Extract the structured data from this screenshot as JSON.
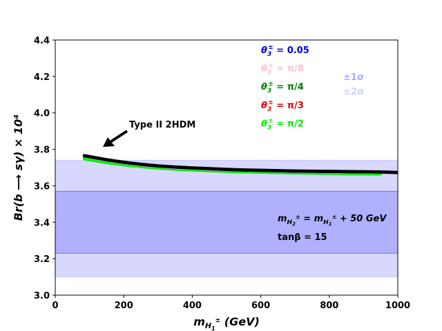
{
  "chart_data": {
    "type": "scatter",
    "xlim": [
      0,
      1000
    ],
    "ylim": [
      3.0,
      4.4
    ],
    "xticks": [
      0,
      200,
      400,
      600,
      800,
      1000
    ],
    "yticks": [
      3.0,
      3.2,
      3.4,
      3.6,
      3.8,
      4.0,
      4.2,
      4.4
    ],
    "xlabel": {
      "main": "m",
      "sub": "H",
      "subsub": "1",
      "sup": "±",
      "unit": " (GeV)"
    },
    "ylabel": "Br(b ⟶ sγ) × 10⁴",
    "grid": false,
    "bands": [
      {
        "name": "±1σ",
        "y0": 3.23,
        "y1": 3.57,
        "color": "#b0b0ff",
        "edge": "#7070ee"
      },
      {
        "name": "±2σ",
        "y0": 3.1,
        "y1": 3.74,
        "color": "#d8d8ff",
        "edge": "#c8c8ff"
      }
    ],
    "series": [
      {
        "name": "θ3± = 0.05",
        "sym": "θ",
        "sub": "3",
        "sup": "±",
        "value": " = 0.05",
        "color": "#0000e6",
        "x": [
          85,
          100,
          150,
          200,
          250,
          300,
          350,
          400,
          450,
          500,
          550,
          600,
          650,
          700,
          750,
          800,
          850,
          900,
          950,
          1000
        ],
        "y": [
          3.765,
          3.76,
          3.742,
          3.728,
          3.717,
          3.708,
          3.702,
          3.697,
          3.693,
          3.689,
          3.686,
          3.684,
          3.682,
          3.68,
          3.679,
          3.678,
          3.677,
          3.676,
          3.675,
          3.672
        ]
      },
      {
        "name": "θ3± = π/8",
        "sym": "θ",
        "sub": "3",
        "sup": "±",
        "value": " = π/8",
        "color": "#ffc0cb",
        "x": [
          85,
          100,
          150,
          200,
          250,
          300,
          350,
          400,
          450,
          500,
          550,
          600,
          650,
          700,
          750,
          800,
          850,
          900,
          950,
          1000
        ],
        "y": [
          3.763,
          3.758,
          3.74,
          3.726,
          3.715,
          3.706,
          3.7,
          3.695,
          3.691,
          3.688,
          3.685,
          3.683,
          3.681,
          3.679,
          3.678,
          3.677,
          3.676,
          3.675,
          3.674,
          3.671
        ]
      },
      {
        "name": "θ3± = π/4",
        "sym": "θ",
        "sub": "3",
        "sup": "±",
        "value": " = π/4",
        "color": "#007f00",
        "x": [
          85,
          100,
          150,
          200,
          250,
          300,
          350,
          400,
          450,
          500,
          550,
          600,
          650,
          700,
          750,
          800,
          850,
          900,
          950
        ],
        "y": [
          3.755,
          3.75,
          3.734,
          3.721,
          3.711,
          3.703,
          3.697,
          3.692,
          3.688,
          3.685,
          3.682,
          3.68,
          3.678,
          3.676,
          3.675,
          3.674,
          3.673,
          3.672,
          3.671
        ]
      },
      {
        "name": "θ3± = π/3",
        "sym": "θ",
        "sub": "3",
        "sup": "±",
        "value": " = π/3",
        "color": "#e60000",
        "x": [
          85,
          100,
          150,
          200,
          250,
          300,
          350,
          400,
          450,
          500,
          550,
          600,
          650,
          700,
          750,
          800,
          850,
          900,
          950
        ],
        "y": [
          3.752,
          3.747,
          3.731,
          3.719,
          3.709,
          3.701,
          3.695,
          3.69,
          3.686,
          3.683,
          3.68,
          3.678,
          3.676,
          3.674,
          3.673,
          3.672,
          3.671,
          3.67,
          3.669
        ]
      },
      {
        "name": "θ3± = π/2",
        "sym": "θ",
        "sub": "3",
        "sup": "±",
        "value": " = π/2",
        "color": "#00ee00",
        "x": [
          85,
          100,
          150,
          200,
          250,
          300,
          350,
          400,
          450,
          500,
          550,
          600,
          650,
          700,
          750,
          800,
          850,
          900,
          950
        ],
        "y": [
          3.748,
          3.743,
          3.727,
          3.715,
          3.705,
          3.697,
          3.691,
          3.686,
          3.682,
          3.679,
          3.676,
          3.674,
          3.672,
          3.67,
          3.669,
          3.668,
          3.667,
          3.666,
          3.665
        ]
      },
      {
        "name": "Type II 2HDM",
        "color": "#000000",
        "legend": false,
        "x": [
          85,
          100,
          150,
          200,
          250,
          300,
          350,
          400,
          450,
          500,
          550,
          600,
          650,
          700,
          750,
          800,
          850,
          900,
          950,
          1000
        ],
        "y": [
          3.765,
          3.76,
          3.743,
          3.729,
          3.718,
          3.709,
          3.703,
          3.698,
          3.694,
          3.69,
          3.687,
          3.685,
          3.683,
          3.681,
          3.68,
          3.679,
          3.678,
          3.677,
          3.676,
          3.673
        ]
      }
    ],
    "annotations": [
      {
        "text": "Type II 2HDM",
        "target_x": 140,
        "target_y": 3.805,
        "anchor": "upper-left-of-curve"
      }
    ],
    "notes": [
      {
        "text": "m_{H2±} = m_{H1±} + 50 GeV"
      },
      {
        "text": "tanβ = 15"
      }
    ],
    "legend_placement": "top-center"
  }
}
